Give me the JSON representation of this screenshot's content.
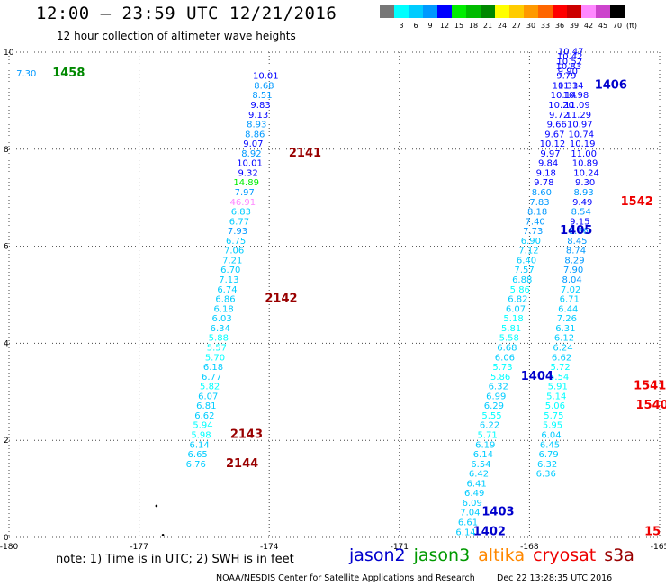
{
  "header": {
    "title": "12:00 – 23:59 UTC 12/21/2016",
    "subtitle": "12 hour collection of altimeter wave heights"
  },
  "legend": {
    "unit": "(ft)",
    "items": [
      {
        "label": "",
        "color": "#777777"
      },
      {
        "label": "3",
        "color": "#00ffff"
      },
      {
        "label": "6",
        "color": "#00ccff"
      },
      {
        "label": "9",
        "color": "#0099ff"
      },
      {
        "label": "12",
        "color": "#0000ff"
      },
      {
        "label": "15",
        "color": "#00ee00"
      },
      {
        "label": "18",
        "color": "#00bb00"
      },
      {
        "label": "21",
        "color": "#008800"
      },
      {
        "label": "24",
        "color": "#ffff00"
      },
      {
        "label": "27",
        "color": "#ffcc00"
      },
      {
        "label": "30",
        "color": "#ff9900"
      },
      {
        "label": "33",
        "color": "#ff6600"
      },
      {
        "label": "36",
        "color": "#ff0000"
      },
      {
        "label": "39",
        "color": "#cc0000"
      },
      {
        "label": "42",
        "color": "#ff88ff"
      },
      {
        "label": "45",
        "color": "#cc44cc"
      },
      {
        "label": "70",
        "color": "#000000"
      }
    ]
  },
  "footer": {
    "note": "note:  1) Time is in UTC;  2) SWH is in feet",
    "satellites": [
      {
        "name": "jason2",
        "color": "#0000cc"
      },
      {
        "name": "jason3",
        "color": "#009900"
      },
      {
        "name": "altika",
        "color": "#ff8800"
      },
      {
        "name": "cryosat",
        "color": "#ee0000"
      },
      {
        "name": "s3a",
        "color": "#990000"
      }
    ],
    "credit": "NOAA/NESDIS Center for Satellite Applications and Research",
    "timestamp": "Dec 22 13:28:35 UTC 2016"
  },
  "chart_data": {
    "type": "scatter",
    "xlim": [
      -180,
      -165
    ],
    "ylim": [
      0,
      10
    ],
    "x_ticks": [
      "-180",
      "-177",
      "-174",
      "-171",
      "-168",
      "-165"
    ],
    "y_ticks": [
      "0",
      "2",
      "4",
      "6",
      "8",
      "10"
    ],
    "grid": true,
    "points": [
      {
        "x": -179.6,
        "y": 9.5,
        "v": "7.30",
        "c": "#0099ff"
      },
      {
        "x": -174.08,
        "y": 9.45,
        "v": "10.01",
        "c": "#0000ff"
      },
      {
        "x": -174.12,
        "y": 9.25,
        "v": "8.68",
        "c": "#0099ff"
      },
      {
        "x": -174.16,
        "y": 9.05,
        "v": "8.51",
        "c": "#0099ff"
      },
      {
        "x": -174.2,
        "y": 8.85,
        "v": "9.83",
        "c": "#0000ff"
      },
      {
        "x": -174.25,
        "y": 8.65,
        "v": "9.13",
        "c": "#0000ff"
      },
      {
        "x": -174.29,
        "y": 8.45,
        "v": "8.93",
        "c": "#0099ff"
      },
      {
        "x": -174.33,
        "y": 8.25,
        "v": "8.86",
        "c": "#0099ff"
      },
      {
        "x": -174.37,
        "y": 8.05,
        "v": "9.07",
        "c": "#0000ff"
      },
      {
        "x": -174.41,
        "y": 7.85,
        "v": "8.92",
        "c": "#0099ff"
      },
      {
        "x": -174.45,
        "y": 7.65,
        "v": "10.01",
        "c": "#0000ff"
      },
      {
        "x": -174.49,
        "y": 7.45,
        "v": "9.32",
        "c": "#0000ff"
      },
      {
        "x": -174.53,
        "y": 7.25,
        "v": "14.89",
        "c": "#00ee00"
      },
      {
        "x": -174.57,
        "y": 7.05,
        "v": "7.97",
        "c": "#0099ff"
      },
      {
        "x": -174.61,
        "y": 6.85,
        "v": "46.91",
        "c": "#ff88ff"
      },
      {
        "x": -174.65,
        "y": 6.65,
        "v": "6.83",
        "c": "#00ccff"
      },
      {
        "x": -174.69,
        "y": 6.45,
        "v": "6.77",
        "c": "#00ccff"
      },
      {
        "x": -174.73,
        "y": 6.25,
        "v": "7.93",
        "c": "#0099ff"
      },
      {
        "x": -174.77,
        "y": 6.05,
        "v": "6.75",
        "c": "#00ccff"
      },
      {
        "x": -174.81,
        "y": 5.85,
        "v": "7.06",
        "c": "#00ccff"
      },
      {
        "x": -174.85,
        "y": 5.65,
        "v": "7.21",
        "c": "#00ccff"
      },
      {
        "x": -174.89,
        "y": 5.45,
        "v": "6.70",
        "c": "#00ccff"
      },
      {
        "x": -174.93,
        "y": 5.25,
        "v": "7.13",
        "c": "#00ccff"
      },
      {
        "x": -174.97,
        "y": 5.05,
        "v": "6.74",
        "c": "#00ccff"
      },
      {
        "x": -175.01,
        "y": 4.85,
        "v": "6.86",
        "c": "#00ccff"
      },
      {
        "x": -175.05,
        "y": 4.65,
        "v": "6.18",
        "c": "#00ccff"
      },
      {
        "x": -175.09,
        "y": 4.45,
        "v": "6.03",
        "c": "#00ccff"
      },
      {
        "x": -175.13,
        "y": 4.25,
        "v": "6.34",
        "c": "#00ccff"
      },
      {
        "x": -175.17,
        "y": 4.05,
        "v": "5.88",
        "c": "#00ffff"
      },
      {
        "x": -175.21,
        "y": 3.85,
        "v": "5.57",
        "c": "#00ffff"
      },
      {
        "x": -175.25,
        "y": 3.65,
        "v": "5.70",
        "c": "#00ffff"
      },
      {
        "x": -175.29,
        "y": 3.45,
        "v": "6.18",
        "c": "#00ccff"
      },
      {
        "x": -175.33,
        "y": 3.25,
        "v": "6.77",
        "c": "#00ccff"
      },
      {
        "x": -175.37,
        "y": 3.05,
        "v": "5.82",
        "c": "#00ffff"
      },
      {
        "x": -175.41,
        "y": 2.85,
        "v": "6.07",
        "c": "#00ccff"
      },
      {
        "x": -175.45,
        "y": 2.65,
        "v": "6.81",
        "c": "#00ccff"
      },
      {
        "x": -175.49,
        "y": 2.45,
        "v": "6.62",
        "c": "#00ccff"
      },
      {
        "x": -175.53,
        "y": 2.25,
        "v": "5.94",
        "c": "#00ffff"
      },
      {
        "x": -175.57,
        "y": 2.05,
        "v": "5.98",
        "c": "#00ffff"
      },
      {
        "x": -175.61,
        "y": 1.85,
        "v": "6.14",
        "c": "#00ccff"
      },
      {
        "x": -175.65,
        "y": 1.65,
        "v": "6.65",
        "c": "#00ccff"
      },
      {
        "x": -175.69,
        "y": 1.45,
        "v": "6.76",
        "c": "#00ccff"
      },
      {
        "x": -167.05,
        "y": 9.95,
        "v": "10.47",
        "c": "#0000ff"
      },
      {
        "x": -167.07,
        "y": 9.85,
        "v": "10.42",
        "c": "#0000ff"
      },
      {
        "x": -167.08,
        "y": 9.75,
        "v": "10.52",
        "c": "#0000ff"
      },
      {
        "x": -167.1,
        "y": 9.65,
        "v": "10.83",
        "c": "#0000ff"
      },
      {
        "x": -167.12,
        "y": 9.55,
        "v": "9.90",
        "c": "#0000ff"
      },
      {
        "x": -167.15,
        "y": 9.45,
        "v": "9.79",
        "c": "#0000ff"
      },
      {
        "x": -167.18,
        "y": 9.25,
        "v": "10.33",
        "c": "#0000ff"
      },
      {
        "x": -167.05,
        "y": 9.25,
        "v": "11.14",
        "c": "#0000ff"
      },
      {
        "x": -167.22,
        "y": 9.05,
        "v": "10.14",
        "c": "#0000ff"
      },
      {
        "x": -166.93,
        "y": 9.05,
        "v": "10.98",
        "c": "#0000ff"
      },
      {
        "x": -167.27,
        "y": 8.85,
        "v": "10.20",
        "c": "#0000ff"
      },
      {
        "x": -166.9,
        "y": 8.85,
        "v": "11.09",
        "c": "#0000ff"
      },
      {
        "x": -167.32,
        "y": 8.65,
        "v": "9.72",
        "c": "#0000ff"
      },
      {
        "x": -166.87,
        "y": 8.65,
        "v": "11.29",
        "c": "#0000ff"
      },
      {
        "x": -167.37,
        "y": 8.45,
        "v": "9.66",
        "c": "#0000ff"
      },
      {
        "x": -166.84,
        "y": 8.45,
        "v": "10.97",
        "c": "#0000ff"
      },
      {
        "x": -167.42,
        "y": 8.25,
        "v": "9.67",
        "c": "#0000ff"
      },
      {
        "x": -166.81,
        "y": 8.25,
        "v": "10.74",
        "c": "#0000ff"
      },
      {
        "x": -167.47,
        "y": 8.05,
        "v": "10.12",
        "c": "#0000ff"
      },
      {
        "x": -166.78,
        "y": 8.05,
        "v": "10.19",
        "c": "#0000ff"
      },
      {
        "x": -167.52,
        "y": 7.85,
        "v": "9.97",
        "c": "#0000ff"
      },
      {
        "x": -166.75,
        "y": 7.85,
        "v": "11.00",
        "c": "#0000ff"
      },
      {
        "x": -167.57,
        "y": 7.65,
        "v": "9.84",
        "c": "#0000ff"
      },
      {
        "x": -166.72,
        "y": 7.65,
        "v": "10.89",
        "c": "#0000ff"
      },
      {
        "x": -167.62,
        "y": 7.45,
        "v": "9.18",
        "c": "#0000ff"
      },
      {
        "x": -166.69,
        "y": 7.45,
        "v": "10.24",
        "c": "#0000ff"
      },
      {
        "x": -167.67,
        "y": 7.25,
        "v": "9.78",
        "c": "#0000ff"
      },
      {
        "x": -166.72,
        "y": 7.25,
        "v": "9.30",
        "c": "#0000ff"
      },
      {
        "x": -167.72,
        "y": 7.05,
        "v": "8.60",
        "c": "#0099ff"
      },
      {
        "x": -166.75,
        "y": 7.05,
        "v": "8.93",
        "c": "#0099ff"
      },
      {
        "x": -167.77,
        "y": 6.85,
        "v": "7.83",
        "c": "#0099ff"
      },
      {
        "x": -166.78,
        "y": 6.85,
        "v": "9.49",
        "c": "#0000ff"
      },
      {
        "x": -167.82,
        "y": 6.65,
        "v": "8.18",
        "c": "#0099ff"
      },
      {
        "x": -166.81,
        "y": 6.65,
        "v": "8.54",
        "c": "#0099ff"
      },
      {
        "x": -167.87,
        "y": 6.45,
        "v": "7.40",
        "c": "#0099ff"
      },
      {
        "x": -166.84,
        "y": 6.45,
        "v": "9.15",
        "c": "#0000ff"
      },
      {
        "x": -167.92,
        "y": 6.25,
        "v": "7.73",
        "c": "#0099ff"
      },
      {
        "x": -166.87,
        "y": 6.25,
        "v": "8.66",
        "c": "#0099ff"
      },
      {
        "x": -167.97,
        "y": 6.05,
        "v": "6.90",
        "c": "#00ccff"
      },
      {
        "x": -166.9,
        "y": 6.05,
        "v": "8.45",
        "c": "#0099ff"
      },
      {
        "x": -168.02,
        "y": 5.85,
        "v": "7.12",
        "c": "#00ccff"
      },
      {
        "x": -166.93,
        "y": 5.85,
        "v": "8.74",
        "c": "#0099ff"
      },
      {
        "x": -168.07,
        "y": 5.65,
        "v": "6.40",
        "c": "#00ccff"
      },
      {
        "x": -166.96,
        "y": 5.65,
        "v": "8.29",
        "c": "#0099ff"
      },
      {
        "x": -168.12,
        "y": 5.45,
        "v": "7.57",
        "c": "#00ccff"
      },
      {
        "x": -166.99,
        "y": 5.45,
        "v": "7.90",
        "c": "#0099ff"
      },
      {
        "x": -168.17,
        "y": 5.25,
        "v": "6.88",
        "c": "#00ccff"
      },
      {
        "x": -167.02,
        "y": 5.25,
        "v": "8.04",
        "c": "#0099ff"
      },
      {
        "x": -168.22,
        "y": 5.05,
        "v": "5.86",
        "c": "#00ffff"
      },
      {
        "x": -167.05,
        "y": 5.05,
        "v": "7.02",
        "c": "#00ccff"
      },
      {
        "x": -168.27,
        "y": 4.85,
        "v": "6.82",
        "c": "#00ccff"
      },
      {
        "x": -167.08,
        "y": 4.85,
        "v": "6.71",
        "c": "#00ccff"
      },
      {
        "x": -168.32,
        "y": 4.65,
        "v": "6.07",
        "c": "#00ccff"
      },
      {
        "x": -167.11,
        "y": 4.65,
        "v": "6.44",
        "c": "#00ccff"
      },
      {
        "x": -168.37,
        "y": 4.45,
        "v": "5.18",
        "c": "#00ffff"
      },
      {
        "x": -167.14,
        "y": 4.45,
        "v": "7.26",
        "c": "#00ccff"
      },
      {
        "x": -168.42,
        "y": 4.25,
        "v": "5.81",
        "c": "#00ffff"
      },
      {
        "x": -167.17,
        "y": 4.25,
        "v": "6.31",
        "c": "#00ccff"
      },
      {
        "x": -168.47,
        "y": 4.05,
        "v": "5.58",
        "c": "#00ffff"
      },
      {
        "x": -167.2,
        "y": 4.05,
        "v": "6.12",
        "c": "#00ccff"
      },
      {
        "x": -168.52,
        "y": 3.85,
        "v": "6.68",
        "c": "#00ccff"
      },
      {
        "x": -167.23,
        "y": 3.85,
        "v": "6.24",
        "c": "#00ccff"
      },
      {
        "x": -168.57,
        "y": 3.65,
        "v": "6.06",
        "c": "#00ccff"
      },
      {
        "x": -167.26,
        "y": 3.65,
        "v": "6.62",
        "c": "#00ccff"
      },
      {
        "x": -168.62,
        "y": 3.45,
        "v": "5.73",
        "c": "#00ffff"
      },
      {
        "x": -167.29,
        "y": 3.45,
        "v": "5.72",
        "c": "#00ffff"
      },
      {
        "x": -168.67,
        "y": 3.25,
        "v": "5.86",
        "c": "#00ffff"
      },
      {
        "x": -167.32,
        "y": 3.25,
        "v": "5.54",
        "c": "#00ffff"
      },
      {
        "x": -168.72,
        "y": 3.05,
        "v": "6.32",
        "c": "#00ccff"
      },
      {
        "x": -167.35,
        "y": 3.05,
        "v": "5.91",
        "c": "#00ffff"
      },
      {
        "x": -168.77,
        "y": 2.85,
        "v": "6.99",
        "c": "#00ccff"
      },
      {
        "x": -167.38,
        "y": 2.85,
        "v": "5.14",
        "c": "#00ffff"
      },
      {
        "x": -168.82,
        "y": 2.65,
        "v": "6.29",
        "c": "#00ccff"
      },
      {
        "x": -167.41,
        "y": 2.65,
        "v": "5.06",
        "c": "#00ffff"
      },
      {
        "x": -168.87,
        "y": 2.45,
        "v": "5.55",
        "c": "#00ffff"
      },
      {
        "x": -167.44,
        "y": 2.45,
        "v": "5.75",
        "c": "#00ffff"
      },
      {
        "x": -168.92,
        "y": 2.25,
        "v": "6.22",
        "c": "#00ccff"
      },
      {
        "x": -167.47,
        "y": 2.25,
        "v": "5.95",
        "c": "#00ffff"
      },
      {
        "x": -168.97,
        "y": 2.05,
        "v": "5.71",
        "c": "#00ffff"
      },
      {
        "x": -167.5,
        "y": 2.05,
        "v": "6.04",
        "c": "#00ccff"
      },
      {
        "x": -169.02,
        "y": 1.85,
        "v": "6.19",
        "c": "#00ccff"
      },
      {
        "x": -167.53,
        "y": 1.85,
        "v": "6.45",
        "c": "#00ccff"
      },
      {
        "x": -169.07,
        "y": 1.65,
        "v": "6.14",
        "c": "#00ccff"
      },
      {
        "x": -167.56,
        "y": 1.65,
        "v": "6.79",
        "c": "#00ccff"
      },
      {
        "x": -169.12,
        "y": 1.45,
        "v": "6.54",
        "c": "#00ccff"
      },
      {
        "x": -167.59,
        "y": 1.45,
        "v": "6.32",
        "c": "#00ccff"
      },
      {
        "x": -169.17,
        "y": 1.25,
        "v": "6.42",
        "c": "#00ccff"
      },
      {
        "x": -167.62,
        "y": 1.25,
        "v": "6.36",
        "c": "#00ccff"
      },
      {
        "x": -169.22,
        "y": 1.05,
        "v": "6.41",
        "c": "#00ccff"
      },
      {
        "x": -169.27,
        "y": 0.85,
        "v": "6.49",
        "c": "#00ccff"
      },
      {
        "x": -169.32,
        "y": 0.65,
        "v": "6.09",
        "c": "#00ccff"
      },
      {
        "x": -169.37,
        "y": 0.45,
        "v": "7.04",
        "c": "#00ccff"
      },
      {
        "x": -169.42,
        "y": 0.25,
        "v": "6.61",
        "c": "#00ccff"
      },
      {
        "x": -169.47,
        "y": 0.05,
        "v": "6.14",
        "c": "#00ccff"
      }
    ],
    "time_labels": [
      {
        "x": -179.0,
        "y": 9.5,
        "t": "1458",
        "c": "#008800"
      },
      {
        "x": -173.55,
        "y": 7.85,
        "t": "2141",
        "c": "#990000"
      },
      {
        "x": -174.1,
        "y": 4.85,
        "t": "2142",
        "c": "#990000"
      },
      {
        "x": -174.9,
        "y": 2.05,
        "t": "2143",
        "c": "#990000"
      },
      {
        "x": -175.0,
        "y": 1.45,
        "t": "2144",
        "c": "#990000"
      },
      {
        "x": -166.5,
        "y": 9.25,
        "t": "1406",
        "c": "#0000cc"
      },
      {
        "x": -167.3,
        "y": 6.25,
        "t": "1405",
        "c": "#0000cc"
      },
      {
        "x": -168.2,
        "y": 3.25,
        "t": "1404",
        "c": "#0000cc"
      },
      {
        "x": -169.1,
        "y": 0.45,
        "t": "1403",
        "c": "#0000cc"
      },
      {
        "x": -169.3,
        "y": 0.05,
        "t": "1402",
        "c": "#0000cc"
      },
      {
        "x": -165.9,
        "y": 6.85,
        "t": "1542",
        "c": "#ee0000"
      },
      {
        "x": -165.6,
        "y": 3.05,
        "t": "1541",
        "c": "#ee0000"
      },
      {
        "x": -165.55,
        "y": 2.65,
        "t": "1540",
        "c": "#ee0000"
      },
      {
        "x": -165.35,
        "y": 0.05,
        "t": "15",
        "c": "#ee0000"
      }
    ],
    "dots": [
      {
        "x": -176.6,
        "y": 0.65
      },
      {
        "x": -176.45,
        "y": 0.05
      }
    ]
  }
}
